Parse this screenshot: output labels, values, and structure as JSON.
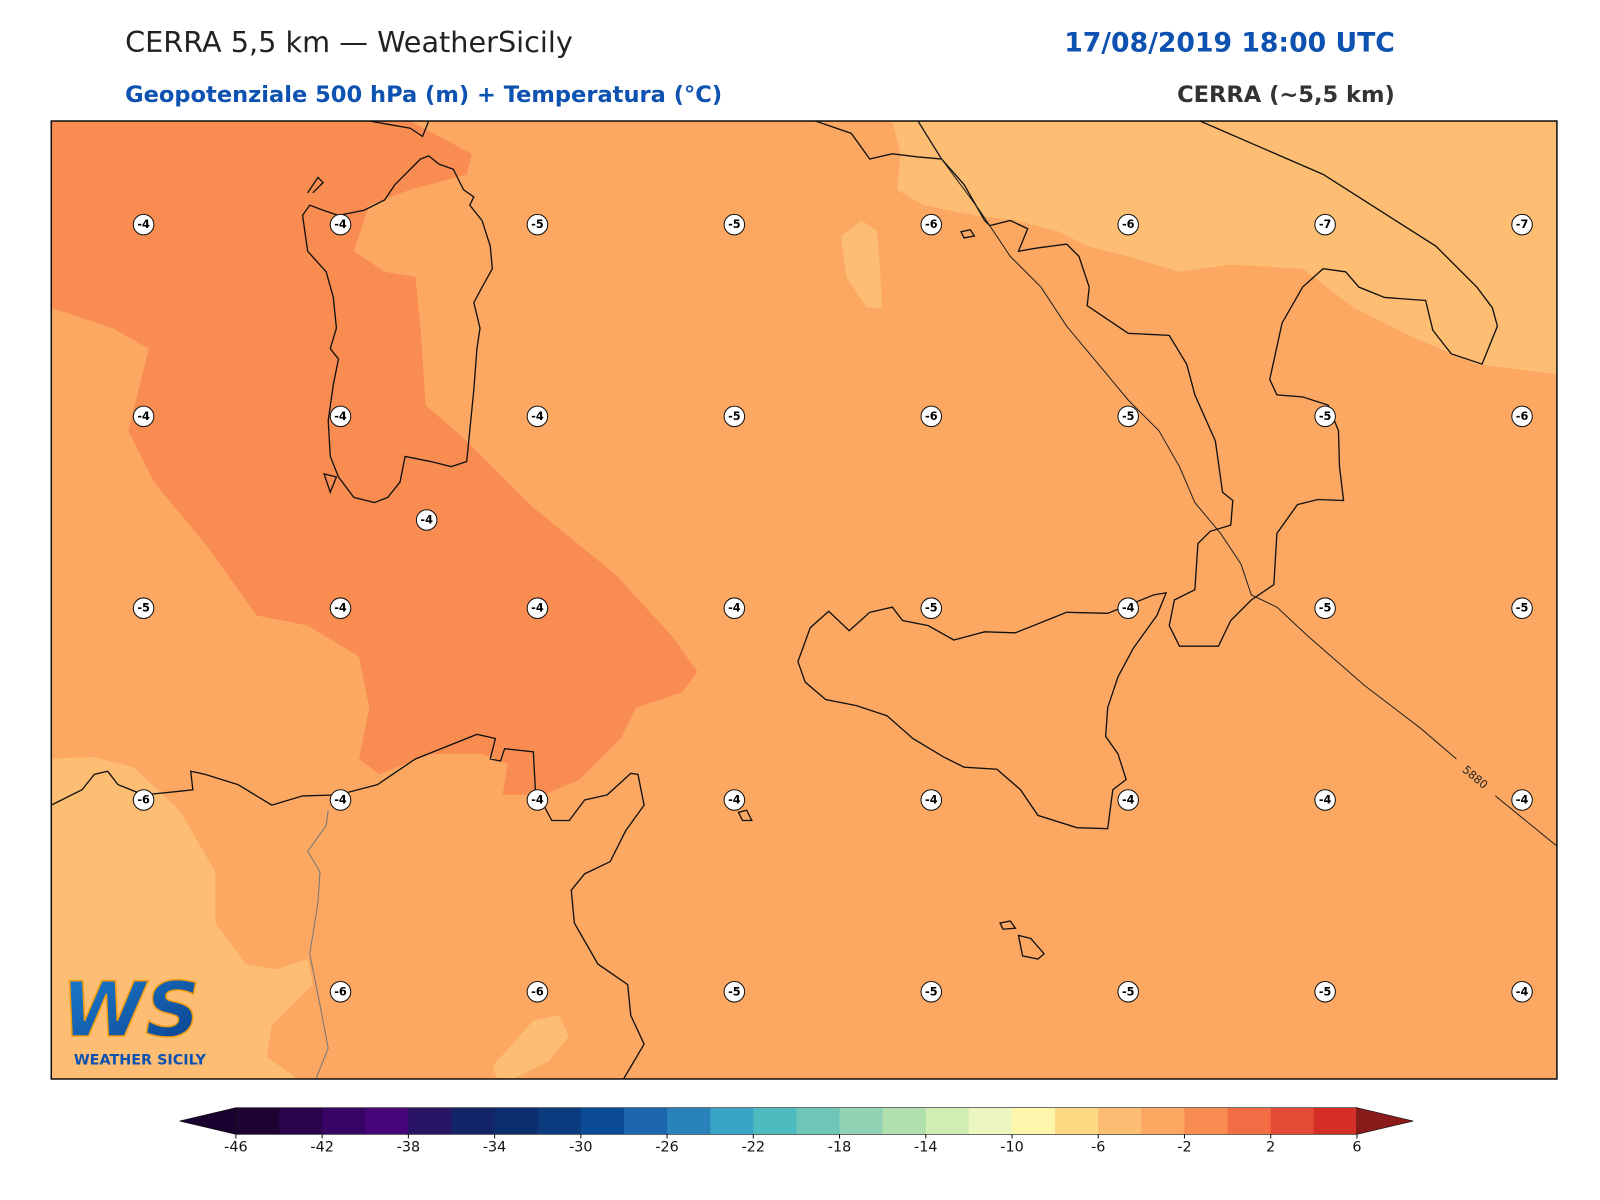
{
  "header": {
    "title": "CERRA 5,5 km — WeatherSicily",
    "subtitle": "Geopotenziale 500 hPa (m) + Temperatura (°C)",
    "datetime": "17/08/2019 18:00 UTC",
    "model": "CERRA (~5,5 km)"
  },
  "map": {
    "temperature_grid": [
      [
        -4,
        -4,
        -5,
        -5,
        -6,
        -6,
        -7,
        -7
      ],
      [
        -4,
        -4,
        -4,
        -5,
        -6,
        -5,
        -5,
        -6
      ],
      [
        -5,
        -4,
        -4,
        -4,
        -5,
        -4,
        -5,
        -5
      ],
      [
        -6,
        -4,
        -4,
        -4,
        -4,
        -4,
        -4,
        -4
      ],
      [
        null,
        -6,
        -6,
        -5,
        -5,
        -5,
        -5,
        -4
      ]
    ],
    "extra_label": -4,
    "contour_label": "5880"
  },
  "colorbar": {
    "ticks": [
      -46,
      -42,
      -38,
      -34,
      -30,
      -26,
      -22,
      -18,
      -14,
      -10,
      -6,
      -2,
      2,
      6
    ],
    "under_color": "#1a0230",
    "over_color": "#8b1a1a",
    "colors": [
      "#1f0333",
      "#2a044a",
      "#390565",
      "#46067a",
      "#291565",
      "#142468",
      "#0c2d6e",
      "#0b3a7f",
      "#0b4a94",
      "#1b66ad",
      "#2a82bb",
      "#37a3c5",
      "#4dbbc0",
      "#6ec6b8",
      "#91d3b4",
      "#b1e0af",
      "#d2edb4",
      "#ecf7c0",
      "#fff6ae",
      "#fed883",
      "#fdbd72",
      "#fca862",
      "#f98c50",
      "#f26c44",
      "#e44b34",
      "#d42e26"
    ]
  },
  "logo": {
    "initials": "WS",
    "name": "WEATHER SICILY"
  }
}
